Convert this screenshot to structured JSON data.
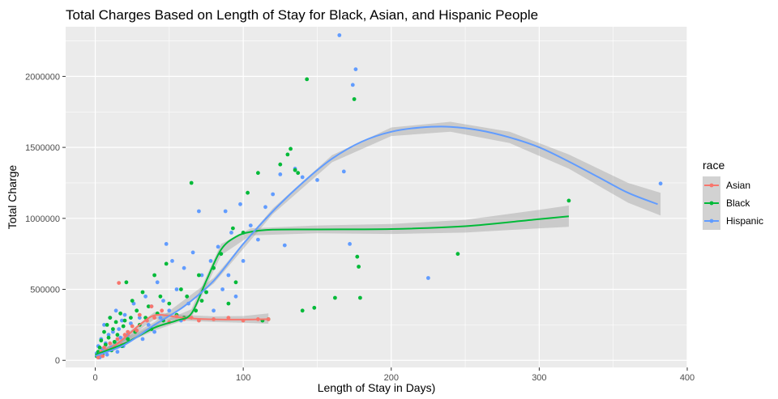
{
  "chart_data": {
    "type": "scatter",
    "title": "Total Charges Based on Length of Stay for Black, Asian, and Hispanic People",
    "xlabel": "Length of Stay in Days)",
    "ylabel": "Total Charge",
    "xlim": [
      -20,
      400
    ],
    "ylim": [
      -50000,
      2350000
    ],
    "x_ticks": [
      0,
      100,
      200,
      300,
      400
    ],
    "y_ticks": [
      0,
      500000,
      1000000,
      1500000,
      2000000
    ],
    "x_tick_labels": [
      "0",
      "100",
      "200",
      "300",
      "400"
    ],
    "y_tick_labels": [
      "0",
      "500000",
      "1000000",
      "1500000",
      "2000000"
    ],
    "grid": true,
    "legend": {
      "title": "race",
      "placement": "right"
    },
    "series": [
      {
        "name": "Asian",
        "color": "#F8766D",
        "points": [
          [
            2,
            20000
          ],
          [
            3,
            45000
          ],
          [
            4,
            60000
          ],
          [
            5,
            30000
          ],
          [
            6,
            90000
          ],
          [
            8,
            70000
          ],
          [
            10,
            120000
          ],
          [
            12,
            80000
          ],
          [
            15,
            150000
          ],
          [
            16,
            545000
          ],
          [
            18,
            110000
          ],
          [
            20,
            180000
          ],
          [
            22,
            200000
          ],
          [
            25,
            240000
          ],
          [
            28,
            210000
          ],
          [
            30,
            320000
          ],
          [
            35,
            280000
          ],
          [
            38,
            380000
          ],
          [
            40,
            300000
          ],
          [
            45,
            350000
          ],
          [
            50,
            270000
          ],
          [
            55,
            310000
          ],
          [
            60,
            290000
          ],
          [
            65,
            300000
          ],
          [
            70,
            280000
          ],
          [
            80,
            290000
          ],
          [
            90,
            300000
          ],
          [
            100,
            280000
          ],
          [
            110,
            290000
          ],
          [
            117,
            290000
          ]
        ],
        "smooth": [
          [
            0,
            30000
          ],
          [
            10,
            80000
          ],
          [
            20,
            160000
          ],
          [
            30,
            250000
          ],
          [
            38,
            310000
          ],
          [
            45,
            320000
          ],
          [
            55,
            305000
          ],
          [
            70,
            292000
          ],
          [
            85,
            288000
          ],
          [
            100,
            287000
          ],
          [
            117,
            290000
          ]
        ],
        "smooth_band": [
          [
            0,
            15000,
            45000
          ],
          [
            20,
            140000,
            180000
          ],
          [
            40,
            290000,
            340000
          ],
          [
            60,
            280000,
            320000
          ],
          [
            80,
            270000,
            310000
          ],
          [
            100,
            265000,
            312000
          ],
          [
            117,
            258000,
            330000
          ]
        ]
      },
      {
        "name": "Black",
        "color": "#00BA38",
        "points": [
          [
            1,
            30000
          ],
          [
            2,
            60000
          ],
          [
            3,
            90000
          ],
          [
            4,
            140000
          ],
          [
            5,
            40000
          ],
          [
            6,
            200000
          ],
          [
            7,
            110000
          ],
          [
            8,
            250000
          ],
          [
            9,
            160000
          ],
          [
            10,
            300000
          ],
          [
            11,
            70000
          ],
          [
            12,
            220000
          ],
          [
            13,
            130000
          ],
          [
            14,
            270000
          ],
          [
            15,
            180000
          ],
          [
            17,
            330000
          ],
          [
            18,
            100000
          ],
          [
            19,
            240000
          ],
          [
            20,
            280000
          ],
          [
            21,
            550000
          ],
          [
            22,
            150000
          ],
          [
            24,
            300000
          ],
          [
            25,
            420000
          ],
          [
            27,
            200000
          ],
          [
            28,
            350000
          ],
          [
            30,
            250000
          ],
          [
            32,
            480000
          ],
          [
            34,
            300000
          ],
          [
            36,
            380000
          ],
          [
            38,
            220000
          ],
          [
            40,
            600000
          ],
          [
            42,
            330000
          ],
          [
            44,
            450000
          ],
          [
            46,
            280000
          ],
          [
            48,
            680000
          ],
          [
            50,
            400000
          ],
          [
            55,
            320000
          ],
          [
            58,
            500000
          ],
          [
            60,
            300000
          ],
          [
            62,
            450000
          ],
          [
            65,
            1250000
          ],
          [
            68,
            350000
          ],
          [
            70,
            600000
          ],
          [
            72,
            420000
          ],
          [
            75,
            480000
          ],
          [
            80,
            650000
          ],
          [
            85,
            750000
          ],
          [
            90,
            400000
          ],
          [
            93,
            930000
          ],
          [
            95,
            550000
          ],
          [
            100,
            900000
          ],
          [
            103,
            1180000
          ],
          [
            110,
            1320000
          ],
          [
            113,
            280000
          ],
          [
            117,
            290000
          ],
          [
            125,
            1380000
          ],
          [
            130,
            1450000
          ],
          [
            132,
            1490000
          ],
          [
            135,
            1340000
          ],
          [
            137,
            1320000
          ],
          [
            140,
            350000
          ],
          [
            143,
            1980000
          ],
          [
            148,
            370000
          ],
          [
            162,
            440000
          ],
          [
            175,
            1840000
          ],
          [
            177,
            730000
          ],
          [
            178,
            660000
          ],
          [
            179,
            440000
          ],
          [
            245,
            750000
          ],
          [
            320,
            1125000
          ]
        ],
        "smooth": [
          [
            0,
            40000
          ],
          [
            20,
            120000
          ],
          [
            40,
            230000
          ],
          [
            55,
            280000
          ],
          [
            65,
            330000
          ],
          [
            75,
            560000
          ],
          [
            85,
            780000
          ],
          [
            95,
            870000
          ],
          [
            105,
            905000
          ],
          [
            120,
            920000
          ],
          [
            150,
            922000
          ],
          [
            200,
            925000
          ],
          [
            250,
            945000
          ],
          [
            300,
            995000
          ],
          [
            320,
            1015000
          ]
        ],
        "smooth_band": [
          [
            0,
            25000,
            55000
          ],
          [
            40,
            210000,
            250000
          ],
          [
            65,
            300000,
            360000
          ],
          [
            85,
            740000,
            820000
          ],
          [
            105,
            880000,
            930000
          ],
          [
            150,
            895000,
            950000
          ],
          [
            200,
            890000,
            960000
          ],
          [
            250,
            900000,
            990000
          ],
          [
            300,
            930000,
            1060000
          ],
          [
            320,
            940000,
            1090000
          ]
        ]
      },
      {
        "name": "Hispanic",
        "color": "#619CFF",
        "points": [
          [
            1,
            50000
          ],
          [
            2,
            100000
          ],
          [
            3,
            20000
          ],
          [
            4,
            150000
          ],
          [
            5,
            80000
          ],
          [
            6,
            250000
          ],
          [
            7,
            120000
          ],
          [
            8,
            40000
          ],
          [
            9,
            180000
          ],
          [
            10,
            300000
          ],
          [
            11,
            90000
          ],
          [
            12,
            200000
          ],
          [
            13,
            130000
          ],
          [
            14,
            350000
          ],
          [
            15,
            60000
          ],
          [
            16,
            220000
          ],
          [
            17,
            160000
          ],
          [
            18,
            280000
          ],
          [
            19,
            100000
          ],
          [
            20,
            320000
          ],
          [
            22,
            180000
          ],
          [
            24,
            260000
          ],
          [
            26,
            400000
          ],
          [
            28,
            210000
          ],
          [
            30,
            300000
          ],
          [
            32,
            150000
          ],
          [
            34,
            450000
          ],
          [
            36,
            250000
          ],
          [
            38,
            380000
          ],
          [
            40,
            200000
          ],
          [
            42,
            550000
          ],
          [
            44,
            300000
          ],
          [
            46,
            420000
          ],
          [
            48,
            820000
          ],
          [
            50,
            350000
          ],
          [
            52,
            700000
          ],
          [
            55,
            500000
          ],
          [
            58,
            280000
          ],
          [
            60,
            650000
          ],
          [
            63,
            400000
          ],
          [
            66,
            760000
          ],
          [
            70,
            1050000
          ],
          [
            72,
            600000
          ],
          [
            75,
            480000
          ],
          [
            78,
            700000
          ],
          [
            80,
            350000
          ],
          [
            83,
            800000
          ],
          [
            86,
            500000
          ],
          [
            88,
            1050000
          ],
          [
            90,
            600000
          ],
          [
            92,
            900000
          ],
          [
            95,
            450000
          ],
          [
            98,
            1100000
          ],
          [
            100,
            700000
          ],
          [
            105,
            950000
          ],
          [
            110,
            850000
          ],
          [
            115,
            1080000
          ],
          [
            120,
            1170000
          ],
          [
            125,
            1310000
          ],
          [
            128,
            810000
          ],
          [
            135,
            1350000
          ],
          [
            140,
            1290000
          ],
          [
            150,
            1270000
          ],
          [
            165,
            2290000
          ],
          [
            168,
            1330000
          ],
          [
            172,
            820000
          ],
          [
            174,
            1940000
          ],
          [
            176,
            2050000
          ],
          [
            225,
            580000
          ],
          [
            382,
            1245000
          ]
        ],
        "smooth": [
          [
            0,
            30000
          ],
          [
            20,
            110000
          ],
          [
            40,
            250000
          ],
          [
            60,
            380000
          ],
          [
            80,
            560000
          ],
          [
            100,
            820000
          ],
          [
            120,
            1050000
          ],
          [
            140,
            1250000
          ],
          [
            160,
            1420000
          ],
          [
            180,
            1540000
          ],
          [
            200,
            1610000
          ],
          [
            220,
            1640000
          ],
          [
            240,
            1645000
          ],
          [
            260,
            1620000
          ],
          [
            280,
            1570000
          ],
          [
            300,
            1500000
          ],
          [
            320,
            1400000
          ],
          [
            340,
            1290000
          ],
          [
            360,
            1180000
          ],
          [
            380,
            1100000
          ]
        ],
        "smooth_band": [
          [
            0,
            15000,
            45000
          ],
          [
            40,
            230000,
            270000
          ],
          [
            80,
            540000,
            580000
          ],
          [
            120,
            1030000,
            1070000
          ],
          [
            160,
            1395000,
            1445000
          ],
          [
            200,
            1580000,
            1640000
          ],
          [
            240,
            1610000,
            1680000
          ],
          [
            280,
            1530000,
            1610000
          ],
          [
            320,
            1350000,
            1450000
          ],
          [
            360,
            1110000,
            1250000
          ],
          [
            382,
            1020000,
            1180000
          ]
        ]
      }
    ]
  }
}
